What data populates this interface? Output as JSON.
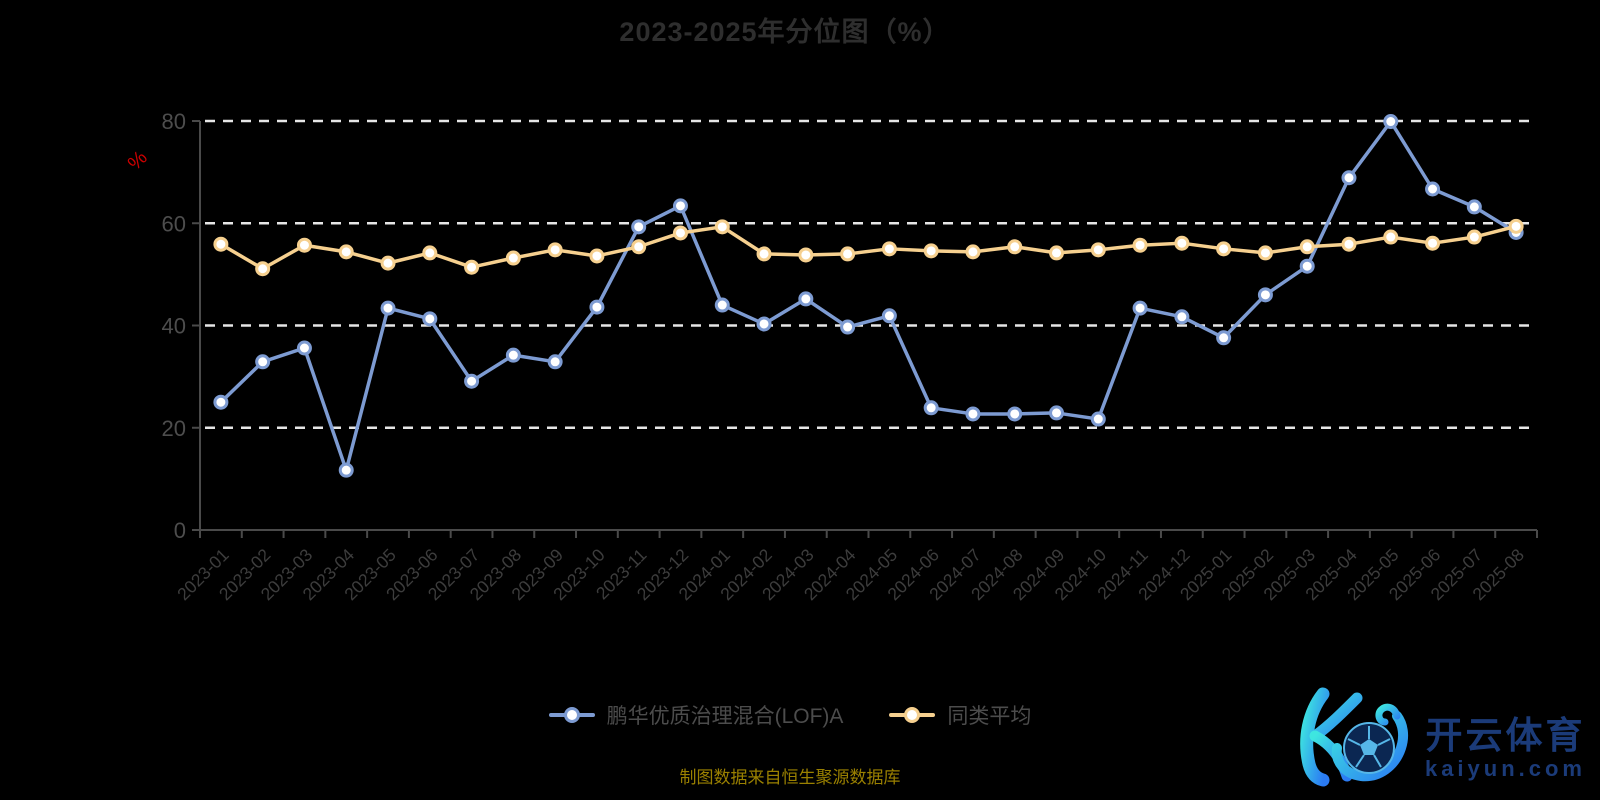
{
  "title": "2023-2025年分位图（%）",
  "caption": "制图数据来自恒生聚源数据库",
  "legend": [
    {
      "label": "鹏华优质治理混合(LOF)A",
      "color": "#7d9bd2"
    },
    {
      "label": "同类平均",
      "color": "#f6d08f"
    }
  ],
  "watermark": {
    "cn": "开云体育",
    "domain": "kaiyun.com",
    "gradient": [
      "#3ee6e0",
      "#2b7bf3"
    ],
    "text_color": "#1b3b79",
    "ball_color": "#0b2752",
    "ball_line_color": "#56b7e8"
  },
  "theme": {
    "background": "#000000",
    "title_color": "#2e2e2e",
    "grid_color": "#e6e6e6",
    "axis_color": "#4a4a4a",
    "x_label_color": "#3d3d3d",
    "y_label_color": "#4d4d4d",
    "unit_color": "#cc0000",
    "legend_text_color": "#4c4c4c",
    "caption_color": "#9a8000",
    "marker_fill": "#ffffff"
  },
  "chart_data": {
    "type": "line",
    "title": "2023-2025年分位图（%）",
    "xlabel": "",
    "ylabel": "%",
    "ylim": [
      0,
      80
    ],
    "yticks": [
      0,
      20,
      40,
      60,
      80
    ],
    "grid": "dashed-horizontal",
    "legend_position": "bottom",
    "x": [
      "2023-01",
      "2023-02",
      "2023-03",
      "2023-04",
      "2023-05",
      "2023-06",
      "2023-07",
      "2023-08",
      "2023-09",
      "2023-10",
      "2023-11",
      "2023-12",
      "2024-01",
      "2024-02",
      "2024-03",
      "2024-04",
      "2024-05",
      "2024-06",
      "2024-07",
      "2024-08",
      "2024-09",
      "2024-10",
      "2024-11",
      "2024-12",
      "2025-01",
      "2025-02",
      "2025-03",
      "2025-04",
      "2025-05",
      "2025-06",
      "2025-07",
      "2025-08"
    ],
    "series": [
      {
        "name": "鹏华优质治理混合(LOF)A",
        "color": "#7d9bd2",
        "values": [
          25.0,
          32.9,
          35.6,
          11.7,
          43.4,
          41.3,
          29.1,
          34.2,
          32.9,
          43.6,
          59.3,
          63.4,
          44.0,
          40.3,
          45.2,
          39.7,
          41.9,
          23.9,
          22.7,
          22.7,
          22.9,
          21.7,
          43.4,
          41.7,
          37.6,
          46.0,
          51.6,
          68.9,
          79.9,
          66.7,
          63.2,
          58.2
        ]
      },
      {
        "name": "同类平均",
        "color": "#f6d08f",
        "values": [
          55.9,
          51.1,
          55.7,
          54.4,
          52.2,
          54.2,
          51.4,
          53.2,
          54.8,
          53.6,
          55.4,
          58.1,
          59.3,
          54.0,
          53.8,
          54.0,
          55.0,
          54.6,
          54.4,
          55.4,
          54.2,
          54.8,
          55.7,
          56.1,
          55.0,
          54.2,
          55.4,
          55.9,
          57.3,
          56.1,
          57.3,
          59.4
        ]
      }
    ]
  }
}
